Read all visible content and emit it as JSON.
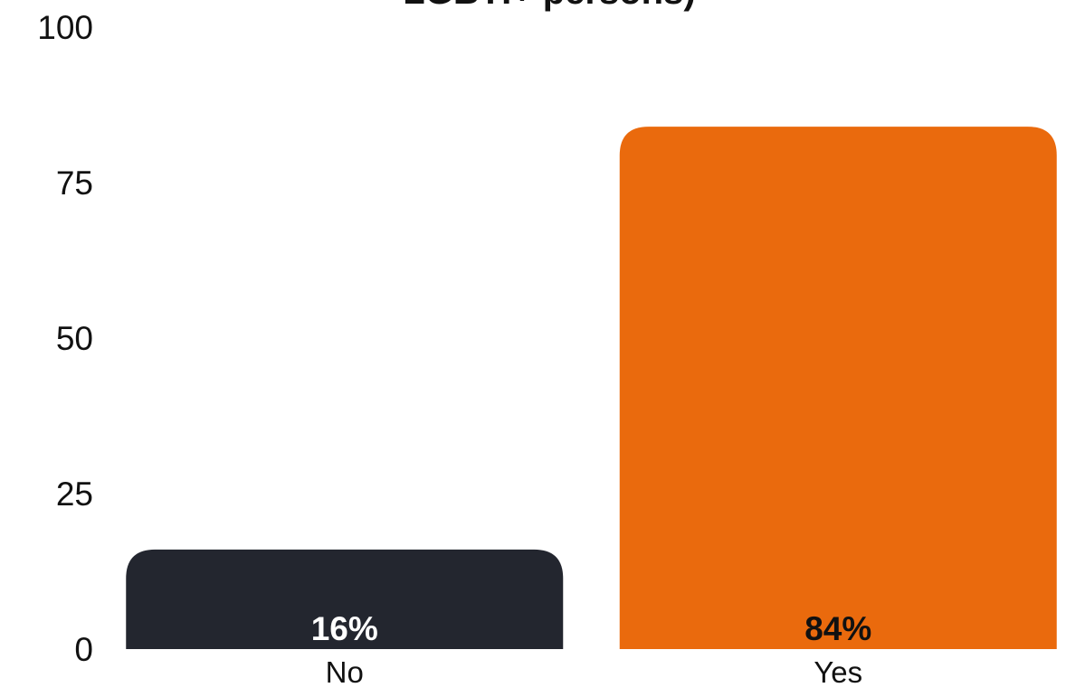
{
  "chart_data": {
    "type": "bar",
    "title": "LGBTI+ persons)",
    "categories": [
      "No",
      "Yes"
    ],
    "values": [
      16,
      84
    ],
    "data_labels": [
      "16%",
      "84%"
    ],
    "ylim": [
      0,
      100
    ],
    "yticks": [
      0,
      25,
      50,
      75,
      100
    ],
    "xlabel": "",
    "ylabel": "",
    "grid": false,
    "legend": "none",
    "colors": {
      "bars": [
        "#23262f",
        "#ea6a0d"
      ],
      "data_label_colors": [
        "#ffffff",
        "#111111"
      ],
      "text": "#111111",
      "background": "#ffffff"
    }
  }
}
